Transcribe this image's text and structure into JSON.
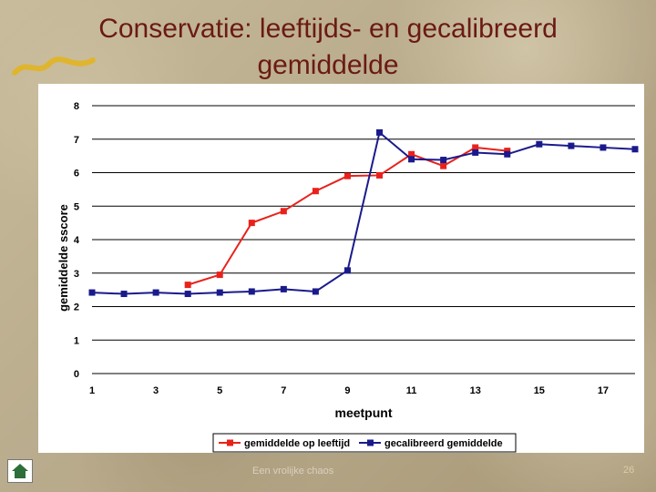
{
  "slide": {
    "title": "Conservatie: leeftijds- en gecalibreerd gemiddelde",
    "footer": "Een vrolijke chaos",
    "page_number": "26",
    "nav_icon": "home-icon"
  },
  "chart_data": {
    "type": "line",
    "title": "",
    "xlabel": "meetpunt",
    "ylabel": "gemiddelde sscore",
    "xlim": [
      1,
      18
    ],
    "ylim": [
      0,
      8
    ],
    "x_ticks": [
      1,
      3,
      5,
      7,
      9,
      11,
      13,
      15,
      17
    ],
    "y_ticks": [
      0,
      1,
      2,
      3,
      4,
      5,
      6,
      7,
      8
    ],
    "grid": "horizontal",
    "legend": "bottom",
    "series": [
      {
        "name": "gemiddelde op leeftijd",
        "color": "#e8221b",
        "marker": "square",
        "x": [
          4,
          5,
          6,
          7,
          8,
          9,
          10,
          11,
          12,
          13,
          14
        ],
        "y": [
          2.65,
          2.95,
          4.5,
          4.85,
          5.45,
          5.9,
          5.92,
          6.55,
          6.2,
          6.75,
          6.65
        ]
      },
      {
        "name": "gecalibreerd gemiddelde",
        "color": "#1a1a8c",
        "marker": "square",
        "x": [
          1,
          2,
          3,
          4,
          5,
          6,
          7,
          8,
          9,
          10,
          11,
          12,
          13,
          14,
          15,
          16,
          17,
          18
        ],
        "y": [
          2.42,
          2.38,
          2.42,
          2.38,
          2.42,
          2.45,
          2.52,
          2.45,
          3.08,
          7.2,
          6.4,
          6.38,
          6.6,
          6.55,
          6.85,
          6.8,
          6.75,
          6.7
        ]
      }
    ]
  }
}
